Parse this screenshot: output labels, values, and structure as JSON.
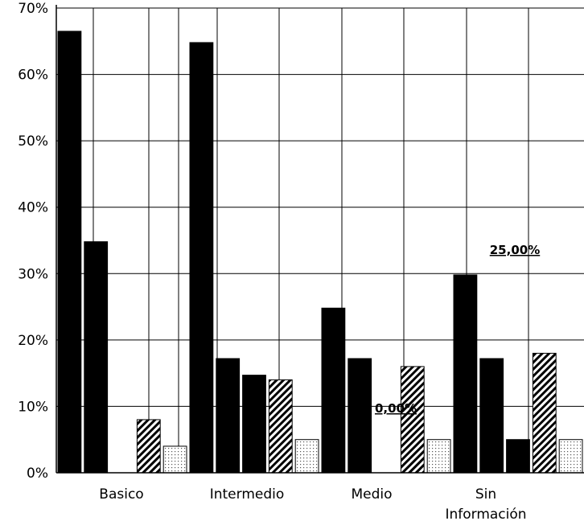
{
  "chart_data": {
    "type": "bar",
    "title": "",
    "xlabel": "",
    "ylabel": "",
    "ylim": [
      0,
      0.7
    ],
    "yticks": [
      "0%",
      "10%",
      "20%",
      "30%",
      "40%",
      "50%",
      "60%",
      "70%"
    ],
    "categories": [
      "Basico",
      "Intermedio",
      "Medio",
      "Sin Información"
    ],
    "category_lines": [
      [
        "Basico"
      ],
      [
        "Intermedio"
      ],
      [
        "Medio"
      ],
      [
        "Sin",
        "Información"
      ]
    ],
    "grid": true,
    "series": [
      {
        "fill": "#000000",
        "pattern": "solid",
        "values": [
          0.665,
          0.648,
          0.248,
          0.298
        ]
      },
      {
        "fill": "#000000",
        "pattern": "solid",
        "values": [
          0.348,
          0.172,
          0.172,
          0.172
        ]
      },
      {
        "fill": "#000000",
        "pattern": "solid",
        "values": [
          0.0,
          0.147,
          0.0,
          0.05
        ]
      },
      {
        "fill": "#000000",
        "pattern": "diagonal-stripes",
        "values": [
          0.08,
          0.14,
          0.16,
          0.18
        ]
      },
      {
        "fill": "#000000",
        "pattern": "dots",
        "values": [
          0.04,
          0.05,
          0.05,
          0.05
        ]
      }
    ],
    "data_labels": [
      "25,00%",
      "0,00%"
    ]
  }
}
